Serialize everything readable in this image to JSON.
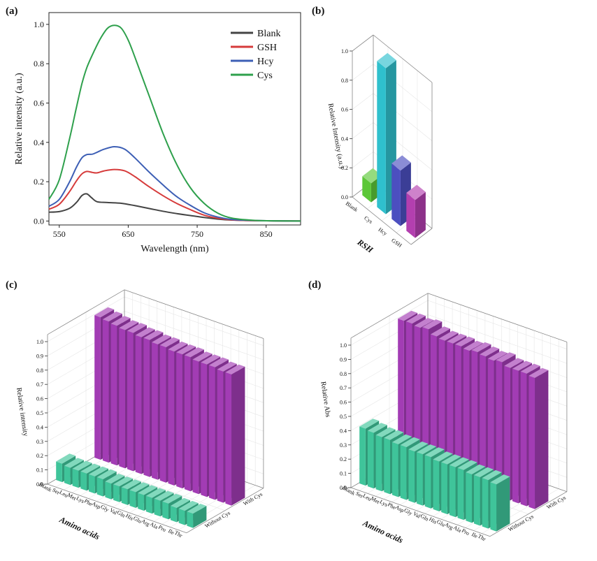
{
  "chart_data": [
    {
      "panel": "(a)",
      "type": "line",
      "title": "",
      "xlabel": "Wavelength (nm)",
      "ylabel": "Relative intensity (a.u.)",
      "xlim": [
        535,
        900
      ],
      "ylim": [
        -0.02,
        1.06
      ],
      "xticks": [
        550,
        650,
        750,
        850
      ],
      "yticks": [
        0.0,
        0.2,
        0.4,
        0.6,
        0.8,
        1.0
      ],
      "legend_position": "top-right",
      "series": [
        {
          "name": "Blank",
          "color": "#444444",
          "x": [
            535,
            550,
            565,
            575,
            583,
            590,
            597,
            605,
            620,
            640,
            660,
            680,
            700,
            720,
            740,
            760,
            780,
            800,
            830,
            860,
            900
          ],
          "y": [
            0.045,
            0.048,
            0.065,
            0.095,
            0.13,
            0.138,
            0.118,
            0.098,
            0.094,
            0.09,
            0.078,
            0.064,
            0.05,
            0.038,
            0.028,
            0.018,
            0.01,
            0.005,
            0.002,
            0.001,
            0.0
          ]
        },
        {
          "name": "GSH",
          "color": "#d63b3b",
          "x": [
            535,
            550,
            565,
            575,
            583,
            590,
            598,
            605,
            615,
            630,
            645,
            660,
            680,
            700,
            720,
            740,
            760,
            780,
            800,
            830,
            860,
            900
          ],
          "y": [
            0.06,
            0.085,
            0.15,
            0.205,
            0.24,
            0.252,
            0.247,
            0.245,
            0.255,
            0.262,
            0.255,
            0.225,
            0.175,
            0.13,
            0.09,
            0.058,
            0.03,
            0.014,
            0.006,
            0.002,
            0.001,
            0.0
          ]
        },
        {
          "name": "Hcy",
          "color": "#3d5fb5",
          "x": [
            535,
            550,
            565,
            575,
            583,
            590,
            598,
            605,
            615,
            630,
            645,
            660,
            680,
            700,
            720,
            740,
            760,
            780,
            800,
            830,
            860,
            900
          ],
          "y": [
            0.075,
            0.11,
            0.2,
            0.275,
            0.322,
            0.338,
            0.34,
            0.35,
            0.365,
            0.378,
            0.365,
            0.32,
            0.25,
            0.185,
            0.125,
            0.08,
            0.042,
            0.02,
            0.008,
            0.003,
            0.001,
            0.0
          ]
        },
        {
          "name": "Cys",
          "color": "#2ea04c",
          "x": [
            535,
            550,
            565,
            575,
            583,
            590,
            600,
            610,
            620,
            630,
            640,
            650,
            660,
            680,
            700,
            720,
            740,
            760,
            780,
            800,
            830,
            860,
            900
          ],
          "y": [
            0.11,
            0.21,
            0.42,
            0.58,
            0.7,
            0.78,
            0.86,
            0.93,
            0.98,
            0.995,
            0.98,
            0.92,
            0.83,
            0.64,
            0.45,
            0.29,
            0.17,
            0.09,
            0.04,
            0.015,
            0.004,
            0.001,
            0.0
          ]
        }
      ]
    },
    {
      "panel": "(b)",
      "type": "bar",
      "title": "",
      "xlabel": "RSH",
      "ylabel": "Relative Intensity (a.u.)",
      "yticks": [
        0.0,
        0.2,
        0.4,
        0.6,
        0.8,
        1.0
      ],
      "categories": [
        "Blank",
        "Cys",
        "Hcy",
        "GSH"
      ],
      "values": [
        0.13,
        1.0,
        0.38,
        0.26
      ],
      "colors": [
        "#5cc738",
        "#2fc0cd",
        "#4c4fc0",
        "#b33faf"
      ]
    },
    {
      "panel": "(c)",
      "type": "bar",
      "title": "",
      "xlabel": "Amino acids",
      "ylabel": "Relative intensity",
      "yticks": [
        0.0,
        0.1,
        0.2,
        0.3,
        0.4,
        0.5,
        0.6,
        0.7,
        0.8,
        0.9,
        1.0
      ],
      "categories": [
        "Blank",
        "Ser",
        "Leu",
        "Met",
        "Lys",
        "Phe",
        "Asp",
        "Gly",
        "Val",
        "Gln",
        "His",
        "Glu",
        "Arg",
        "Ala",
        "Pro",
        "Ile",
        "Thr"
      ],
      "depth_labels": [
        "Without Cys",
        "With Cys"
      ],
      "series": [
        {
          "name": "Without Cys",
          "color": "#3fc49a",
          "values": [
            0.13,
            0.12,
            0.12,
            0.12,
            0.12,
            0.12,
            0.11,
            0.11,
            0.11,
            0.11,
            0.11,
            0.11,
            0.11,
            0.11,
            0.1,
            0.1,
            0.1
          ]
        },
        {
          "name": "With Cys",
          "color": "#a23cb4",
          "values": [
            1.0,
            0.99,
            0.98,
            0.97,
            0.97,
            0.96,
            0.96,
            0.95,
            0.95,
            0.94,
            0.94,
            0.94,
            0.93,
            0.93,
            0.93,
            0.92,
            0.92
          ]
        }
      ]
    },
    {
      "panel": "(d)",
      "type": "bar",
      "title": "",
      "xlabel": "Amino acids",
      "ylabel": "Relative Abs",
      "yticks": [
        0.0,
        0.1,
        0.2,
        0.3,
        0.4,
        0.5,
        0.6,
        0.7,
        0.8,
        0.9,
        1.0
      ],
      "categories": [
        "Blank",
        "Ser",
        "Leu",
        "Met",
        "Lys",
        "Phe",
        "Asp",
        "Gly",
        "Val",
        "Gln",
        "His",
        "Glu",
        "Arg",
        "Ala",
        "Pro",
        "Ile",
        "Thr"
      ],
      "depth_labels": [
        "Without Cys",
        "With Cys"
      ],
      "series": [
        {
          "name": "Without Cys",
          "color": "#3fc49a",
          "values": [
            0.4,
            0.39,
            0.38,
            0.38,
            0.37,
            0.37,
            0.36,
            0.36,
            0.36,
            0.35,
            0.35,
            0.35,
            0.35,
            0.34,
            0.34,
            0.34,
            0.33
          ]
        },
        {
          "name": "With Cys",
          "color": "#a23cb4",
          "values": [
            1.0,
            1.0,
            0.99,
            1.0,
            0.97,
            0.96,
            0.96,
            0.96,
            0.95,
            0.96,
            0.95,
            0.94,
            0.95,
            0.93,
            0.93,
            0.93,
            0.92
          ]
        }
      ]
    }
  ]
}
